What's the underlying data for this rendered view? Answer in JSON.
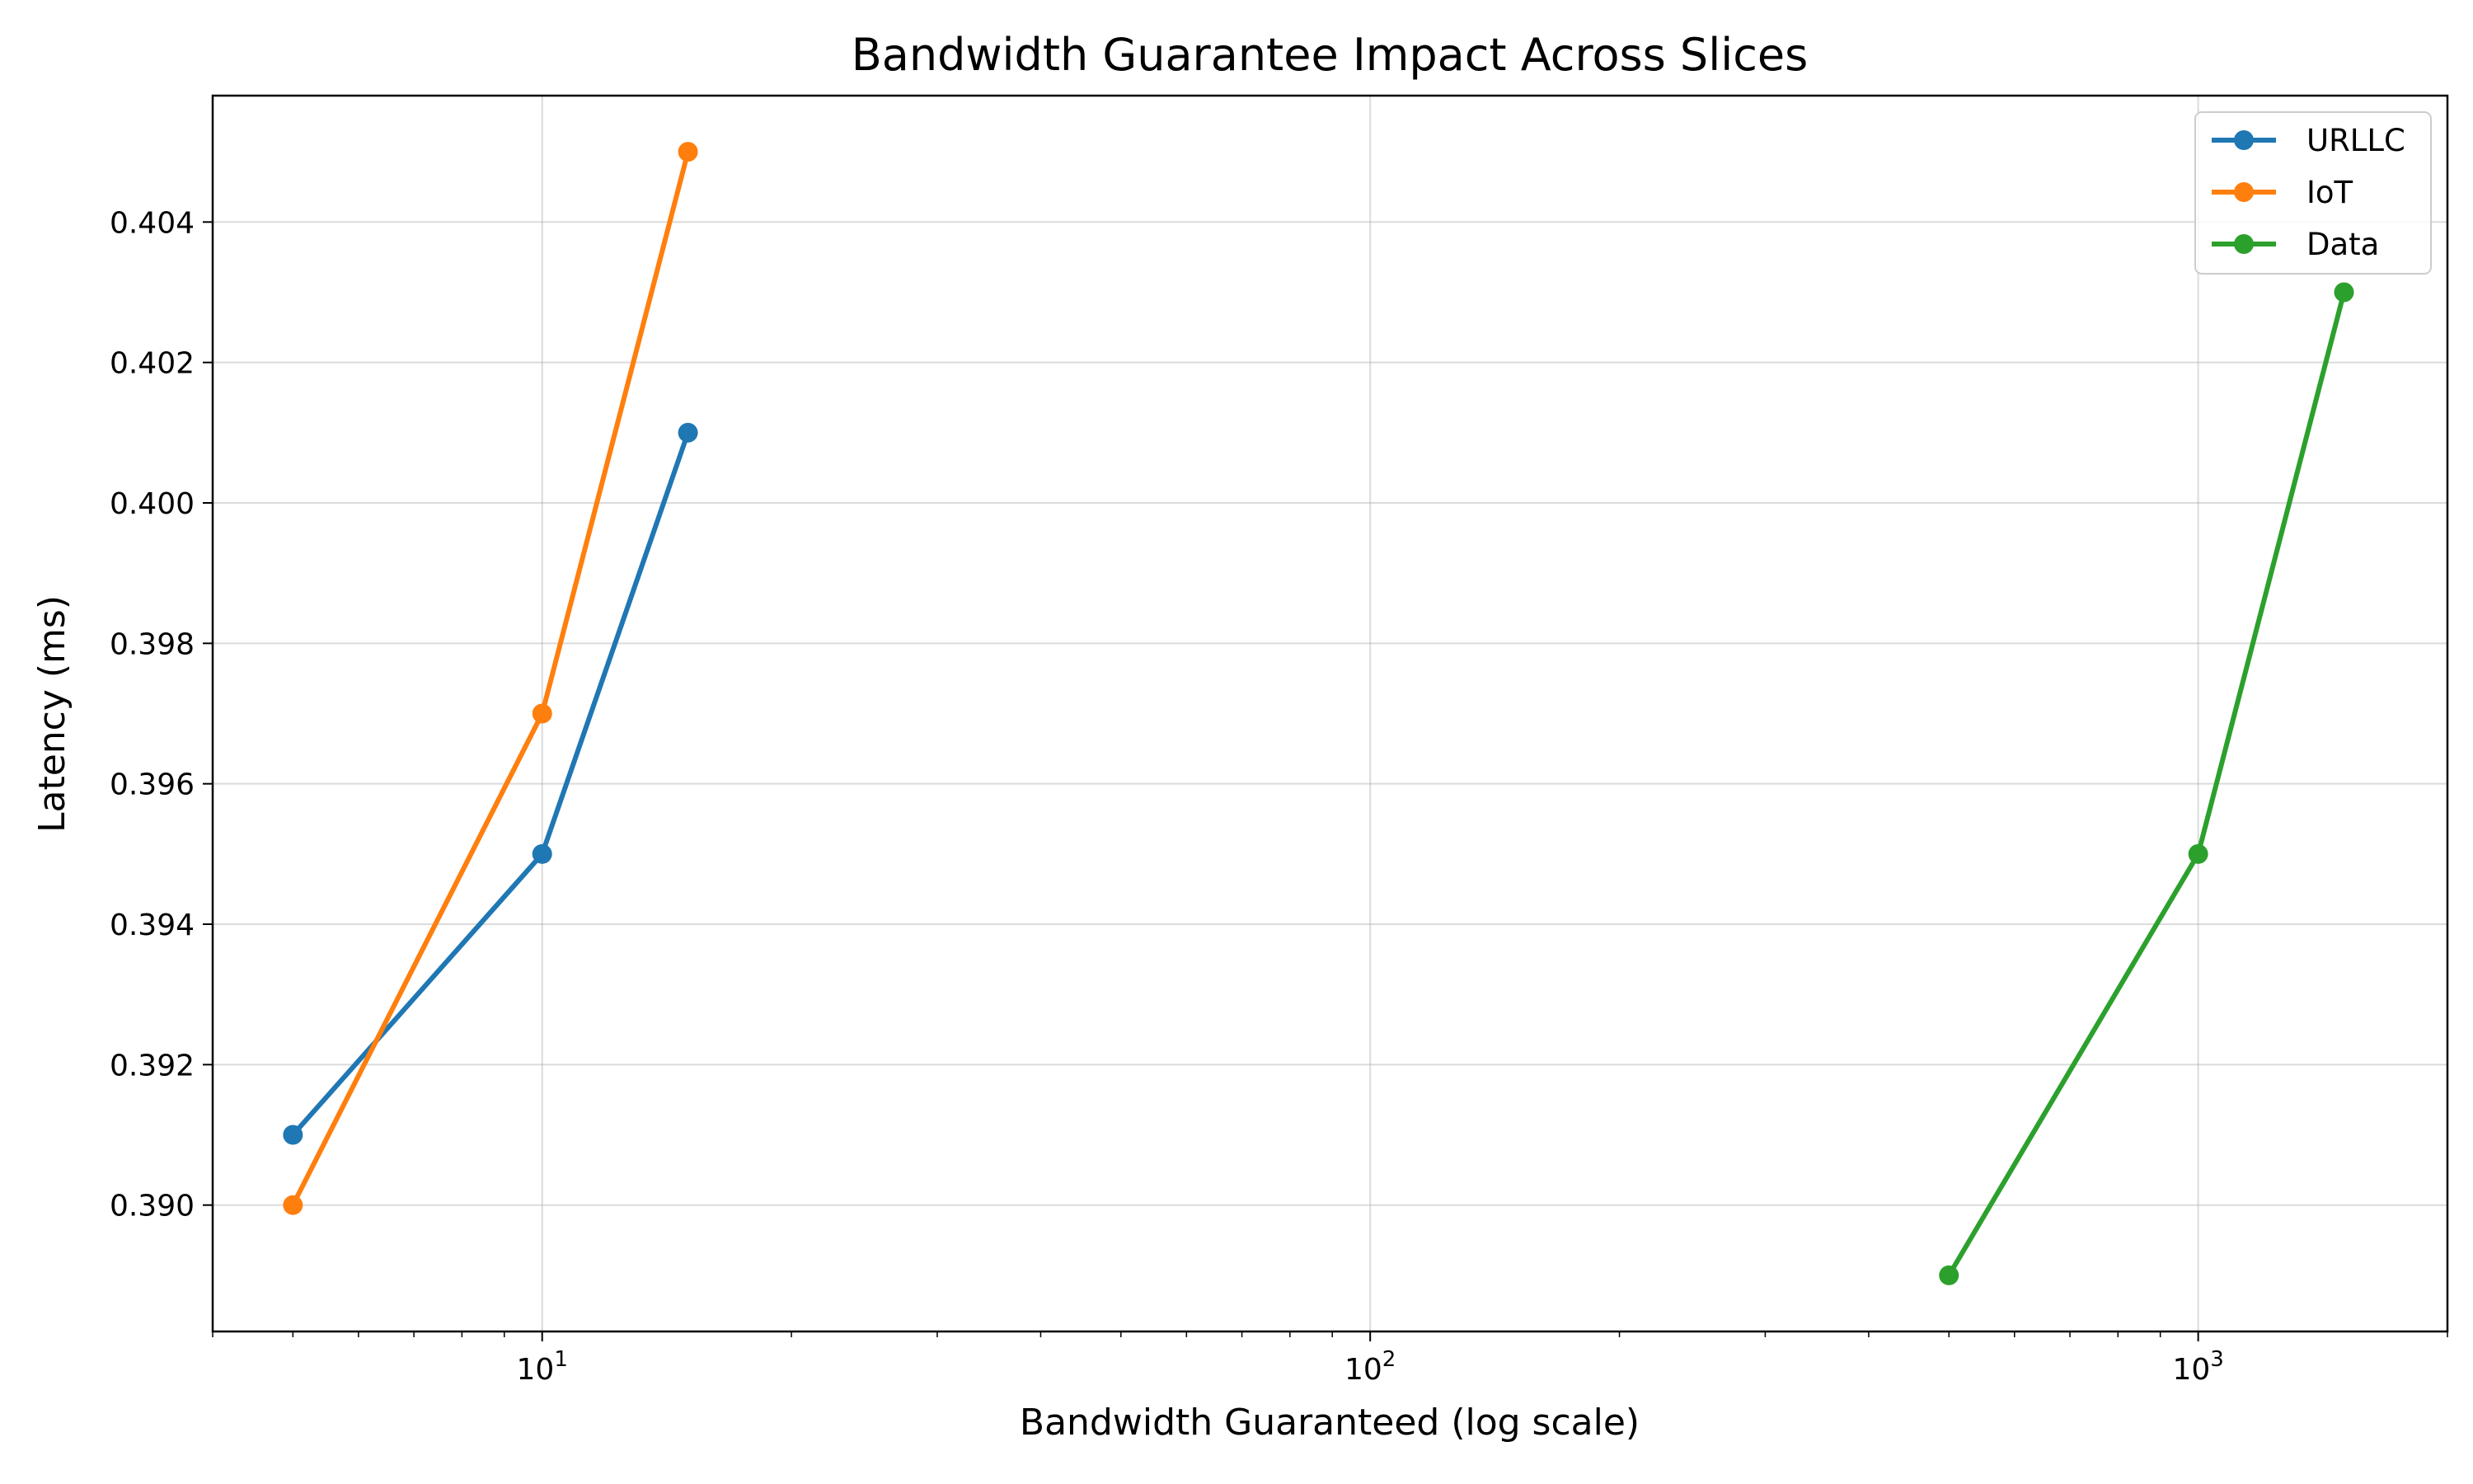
{
  "chart_data": {
    "type": "line",
    "title": "Bandwidth Guarantee Impact Across Slices",
    "xlabel": "Bandwidth Guaranteed (log scale)",
    "ylabel": "Latency (ms)",
    "xscale": "log",
    "xlim": [
      4,
      2000
    ],
    "ylim": [
      0.3882,
      0.4058
    ],
    "x_major_ticks": [
      {
        "value": 10,
        "base": "10",
        "exp": "1"
      },
      {
        "value": 100,
        "base": "10",
        "exp": "2"
      },
      {
        "value": 1000,
        "base": "10",
        "exp": "3"
      }
    ],
    "y_ticks": [
      {
        "value": 0.39,
        "label": "0.390"
      },
      {
        "value": 0.392,
        "label": "0.392"
      },
      {
        "value": 0.394,
        "label": "0.394"
      },
      {
        "value": 0.396,
        "label": "0.396"
      },
      {
        "value": 0.398,
        "label": "0.398"
      },
      {
        "value": 0.4,
        "label": "0.400"
      },
      {
        "value": 0.402,
        "label": "0.402"
      },
      {
        "value": 0.404,
        "label": "0.404"
      }
    ],
    "grid": true,
    "legend_position": "top-right",
    "series": [
      {
        "name": "URLLC",
        "color": "#1f77b4",
        "x": [
          5,
          10,
          15
        ],
        "y": [
          0.391,
          0.395,
          0.401
        ]
      },
      {
        "name": "IoT",
        "color": "#ff7f0e",
        "x": [
          5,
          10,
          15
        ],
        "y": [
          0.39,
          0.397,
          0.405
        ]
      },
      {
        "name": "Data",
        "color": "#2ca02c",
        "x": [
          500,
          1000,
          1500
        ],
        "y": [
          0.389,
          0.395,
          0.403
        ]
      }
    ]
  }
}
